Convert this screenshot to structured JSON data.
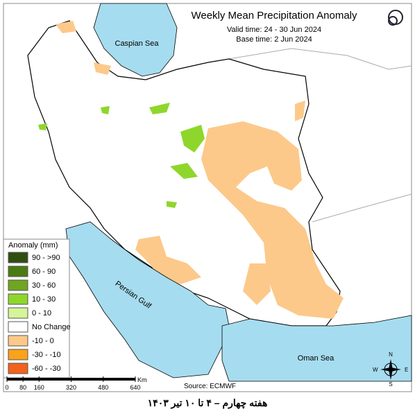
{
  "header": {
    "title": "Weekly Mean Precipitation Anomaly",
    "valid_time": "Valid time: 24 - 30 Jun 2024",
    "base_time": "Base time: 2 Jun 2024"
  },
  "legend": {
    "title": "Anomaly (mm)",
    "items": [
      {
        "label": "90 - >90",
        "color": "#2f4f10"
      },
      {
        "label": "60 - 90",
        "color": "#4a7a12"
      },
      {
        "label": "30 - 60",
        "color": "#6fa520"
      },
      {
        "label": "10 - 30",
        "color": "#8fd62c"
      },
      {
        "label": "0 - 10",
        "color": "#d4f59a"
      },
      {
        "label": "No Change",
        "color": "#ffffff"
      },
      {
        "label": "-10 - 0",
        "color": "#fcc98a"
      },
      {
        "label": "-30 - -10",
        "color": "#f9a21a"
      },
      {
        "label": "-60 - -30",
        "color": "#f2621a"
      }
    ]
  },
  "labels": {
    "caspian": "Caspian Sea",
    "gulf": "Persian Gulf",
    "oman": "Oman Sea"
  },
  "scale": {
    "ticks": [
      0,
      80,
      160,
      320,
      480,
      640
    ],
    "unit": "Km"
  },
  "source": "Source: ECMWF",
  "compass": {
    "n": "N",
    "e": "E",
    "s": "S",
    "w": "W"
  },
  "footer": "هفته چهارم – ۴ تا ۱۰ تیر ۱۴۰۳"
}
